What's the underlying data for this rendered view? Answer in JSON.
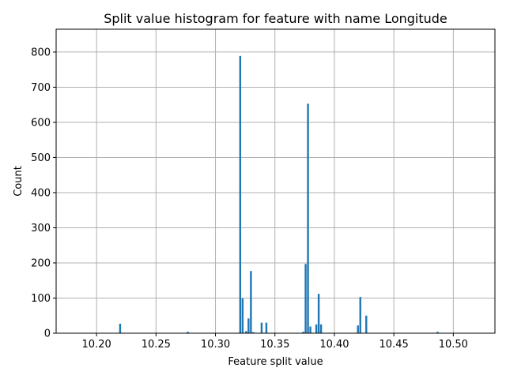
{
  "chart_data": {
    "type": "bar",
    "title": "Split value histogram for feature with name Longitude",
    "xlabel": "Feature split value",
    "ylabel": "Count",
    "xlim": [
      10.166,
      10.535
    ],
    "ylim": [
      0,
      865
    ],
    "grid": true,
    "bar_color": "#1f77b4",
    "bar_width": 0.002,
    "x_ticks": [
      10.2,
      10.25,
      10.3,
      10.35,
      10.4,
      10.45,
      10.5
    ],
    "x_tick_labels": [
      "10.20",
      "10.25",
      "10.30",
      "10.35",
      "10.40",
      "10.45",
      "10.50"
    ],
    "y_ticks": [
      0,
      100,
      200,
      300,
      400,
      500,
      600,
      700,
      800
    ],
    "y_tick_labels": [
      "0",
      "100",
      "200",
      "300",
      "400",
      "500",
      "600",
      "700",
      "800"
    ],
    "bars": [
      {
        "x": 10.22,
        "value": 27
      },
      {
        "x": 10.277,
        "value": 4
      },
      {
        "x": 10.321,
        "value": 789
      },
      {
        "x": 10.323,
        "value": 99
      },
      {
        "x": 10.326,
        "value": 6
      },
      {
        "x": 10.328,
        "value": 42
      },
      {
        "x": 10.33,
        "value": 177
      },
      {
        "x": 10.332,
        "value": 3
      },
      {
        "x": 10.339,
        "value": 30
      },
      {
        "x": 10.343,
        "value": 30
      },
      {
        "x": 10.374,
        "value": 4
      },
      {
        "x": 10.376,
        "value": 197
      },
      {
        "x": 10.378,
        "value": 653
      },
      {
        "x": 10.38,
        "value": 19
      },
      {
        "x": 10.385,
        "value": 25
      },
      {
        "x": 10.387,
        "value": 112
      },
      {
        "x": 10.389,
        "value": 25
      },
      {
        "x": 10.42,
        "value": 22
      },
      {
        "x": 10.422,
        "value": 103
      },
      {
        "x": 10.427,
        "value": 50
      },
      {
        "x": 10.487,
        "value": 4
      }
    ]
  }
}
